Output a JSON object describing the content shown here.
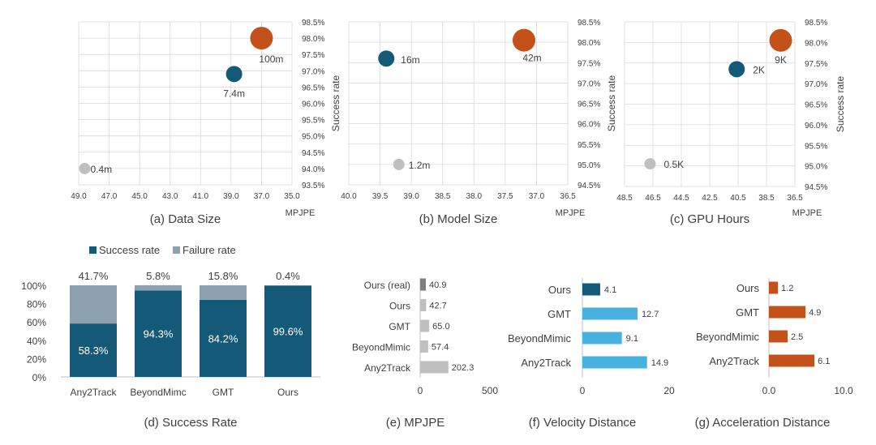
{
  "colors": {
    "teal": "#145a78",
    "orange": "#c4501a",
    "gray": "#bfbfbf",
    "darkgray": "#7f7f7f",
    "lightblue": "#47b2e0",
    "failure": "#8da0ae",
    "grid": "#d9d9d9",
    "axis": "#bfbfbf",
    "text": "#404040"
  },
  "chart_data": [
    {
      "id": "a",
      "type": "scatter",
      "title": "(a) Data Size",
      "xlabel": "MPJPE",
      "ylabel": "Success rate",
      "xlim": [
        49.0,
        35.0
      ],
      "xticks": [
        "49.0",
        "47.0",
        "45.0",
        "43.0",
        "41.0",
        "39.0",
        "37.0",
        "35.0"
      ],
      "ylim": [
        93.5,
        98.5
      ],
      "yticks": [
        "93.5%",
        "94.0%",
        "94.5%",
        "95.0%",
        "95.5%",
        "96.0%",
        "96.5%",
        "97.0%",
        "97.5%",
        "98.0%",
        "98.5%"
      ],
      "grid": true,
      "points": [
        {
          "label": "0.4m",
          "x": 48.6,
          "y": 94.0,
          "color": "gray",
          "size": "small"
        },
        {
          "label": "7.4m",
          "x": 38.8,
          "y": 96.9,
          "color": "teal",
          "size": "medium"
        },
        {
          "label": "100m",
          "x": 37.0,
          "y": 98.0,
          "color": "orange",
          "size": "large"
        }
      ]
    },
    {
      "id": "b",
      "type": "scatter",
      "title": "(b) Model Size",
      "xlabel": "MPJPE",
      "ylabel": "Success rate",
      "xlim": [
        40.0,
        36.5
      ],
      "xticks": [
        "40.0",
        "39.5",
        "39.0",
        "38.5",
        "38.0",
        "37.5",
        "37.0",
        "36.5"
      ],
      "ylim": [
        94.5,
        98.5
      ],
      "yticks": [
        "94.5%",
        "95.0%",
        "95.5%",
        "96.0%",
        "96.5%",
        "97.0%",
        "97.5%",
        "98.0%",
        "98.5%"
      ],
      "grid": true,
      "points": [
        {
          "label": "1.2m",
          "x": 39.2,
          "y": 95.0,
          "color": "gray",
          "size": "small"
        },
        {
          "label": "16m",
          "x": 39.4,
          "y": 97.6,
          "color": "teal",
          "size": "medium"
        },
        {
          "label": "42m",
          "x": 37.2,
          "y": 98.05,
          "color": "orange",
          "size": "large"
        }
      ]
    },
    {
      "id": "c",
      "type": "scatter",
      "title": "(c) GPU Hours",
      "xlabel": "MPJPE",
      "ylabel": "Success rate",
      "xlim": [
        48.5,
        36.5
      ],
      "xticks": [
        "48.5",
        "46.5",
        "44.5",
        "42.5",
        "40.5",
        "38.5",
        "36.5"
      ],
      "ylim": [
        94.5,
        98.5
      ],
      "yticks": [
        "94.5%",
        "95.0%",
        "95.5%",
        "96.0%",
        "96.5%",
        "97.0%",
        "97.5%",
        "98.0%",
        "98.5%"
      ],
      "grid": true,
      "points": [
        {
          "label": "0.5K",
          "x": 46.7,
          "y": 95.05,
          "color": "gray",
          "size": "small"
        },
        {
          "label": "2K",
          "x": 40.6,
          "y": 97.35,
          "color": "teal",
          "size": "medium"
        },
        {
          "label": "9K",
          "x": 37.5,
          "y": 98.05,
          "color": "orange",
          "size": "large"
        }
      ]
    },
    {
      "id": "d",
      "type": "bar",
      "stacked": true,
      "title": "(d) Success Rate",
      "categories": [
        "Any2Track",
        "BeyondMimc",
        "GMT",
        "Ours"
      ],
      "yticks": [
        "0%",
        "20%",
        "40%",
        "60%",
        "80%",
        "100%"
      ],
      "ylim": [
        0,
        100
      ],
      "legend": [
        "Success rate",
        "Failure rate"
      ],
      "series": [
        {
          "name": "Success rate",
          "values": [
            58.3,
            94.3,
            84.2,
            99.6
          ],
          "labels": [
            "58.3%",
            "94.3%",
            "84.2%",
            "99.6%"
          ],
          "color": "teal"
        },
        {
          "name": "Failure rate",
          "values": [
            41.7,
            5.8,
            15.8,
            0.4
          ],
          "labels": [
            "41.7%",
            "5.8%",
            "15.8%",
            "0.4%"
          ],
          "color": "failure"
        }
      ]
    },
    {
      "id": "e",
      "type": "bar",
      "orientation": "horizontal",
      "title": "(e) MPJPE",
      "categories": [
        "Ours (real)",
        "Ours",
        "GMT",
        "BeyondMimic",
        "Any2Track"
      ],
      "values": [
        40.9,
        42.7,
        65.0,
        57.4,
        202.3
      ],
      "labels": [
        "40.9",
        "42.7",
        "65.0",
        "57.4",
        "202.3"
      ],
      "colors": [
        "darkgray",
        "gray",
        "gray",
        "gray",
        "gray"
      ],
      "xlim": [
        0,
        500
      ],
      "xticks": [
        "0",
        "500"
      ]
    },
    {
      "id": "f",
      "type": "bar",
      "orientation": "horizontal",
      "title": "(f) Velocity Distance",
      "categories": [
        "Ours",
        "GMT",
        "BeyondMimic",
        "Any2Track"
      ],
      "values": [
        4.1,
        12.7,
        9.1,
        14.9
      ],
      "labels": [
        "4.1",
        "12.7",
        "9.1",
        "14.9"
      ],
      "colors": [
        "teal",
        "lightblue",
        "lightblue",
        "lightblue"
      ],
      "xlim": [
        0,
        20
      ],
      "xticks": [
        "0",
        "20"
      ]
    },
    {
      "id": "g",
      "type": "bar",
      "orientation": "horizontal",
      "title": "(g) Acceleration Distance",
      "categories": [
        "Ours",
        "GMT",
        "BeyondMimic",
        "Any2Track"
      ],
      "values": [
        1.2,
        4.9,
        2.5,
        6.1
      ],
      "labels": [
        "1.2",
        "4.9",
        "2.5",
        "6.1"
      ],
      "colors": [
        "orange",
        "orange",
        "orange",
        "orange"
      ],
      "xlim": [
        0,
        10
      ],
      "xticks": [
        "0.0",
        "10.0"
      ]
    }
  ]
}
